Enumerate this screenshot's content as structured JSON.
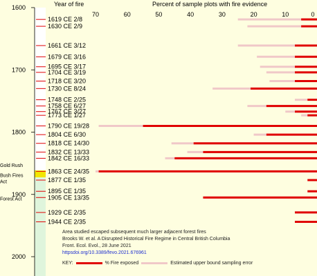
{
  "chart_data": {
    "type": "bar",
    "orientation": "horizontal",
    "title": "Percent of sample plots with fire evidence",
    "ylabel": "Year of fire",
    "xlim": [
      70,
      0
    ],
    "x_ticks": [
      "70",
      "60",
      "50",
      "40",
      "30",
      "20",
      "10",
      "0"
    ],
    "y_axis_ticks": [
      "1600",
      "1700",
      "1800",
      "1900",
      "2000"
    ],
    "ylim": [
      1600,
      2000
    ],
    "y_reversed": true,
    "grid": false,
    "legend": "bottom",
    "fire_years": [
      {
        "label": "1619 CE  2/8",
        "year": 1619,
        "exposed": 5,
        "upper": 25
      },
      {
        "label": "1630 CE  2/9",
        "year": 1630,
        "exposed": 5,
        "upper": 22
      },
      {
        "label": "1661 CE  3/12",
        "year": 1661,
        "exposed": 7,
        "upper": 25
      },
      {
        "label": "1679 CE  3/16",
        "year": 1679,
        "exposed": 7,
        "upper": 19
      },
      {
        "label": "1695 CE  3/17",
        "year": 1695,
        "exposed": 7,
        "upper": 18
      },
      {
        "label": "1704 CE  3/19",
        "year": 1704,
        "exposed": 7,
        "upper": 16
      },
      {
        "label": "1718 CE  3/20",
        "year": 1718,
        "exposed": 7,
        "upper": 15
      },
      {
        "label": "1730 CE  8/24",
        "year": 1730,
        "exposed": 21,
        "upper": 33
      },
      {
        "label": "1748 CE  2/25",
        "year": 1748,
        "exposed": 3,
        "upper": 7
      },
      {
        "label": "1758 CE  6/27",
        "year": 1758,
        "exposed": 16,
        "upper": 22
      },
      {
        "label": "1767 CE  3/27",
        "year": 1767,
        "exposed": 7,
        "upper": 10
      },
      {
        "label": "1773 CE  1/27",
        "year": 1773,
        "exposed": 3,
        "upper": 5
      },
      {
        "label": "1790 CE 19/28",
        "year": 1790,
        "exposed": 55,
        "upper": 69
      },
      {
        "label": "1804 CE  6/30",
        "year": 1804,
        "exposed": 16,
        "upper": 20
      },
      {
        "label": "1818 CE 14/30",
        "year": 1818,
        "exposed": 39,
        "upper": 46
      },
      {
        "label": "1832 CE 13/33",
        "year": 1832,
        "exposed": 36,
        "upper": 41
      },
      {
        "label": "1842 CE 16/33",
        "year": 1842,
        "exposed": 45,
        "upper": 48
      },
      {
        "label": "1863 CE 24/35",
        "year": 1863,
        "exposed": 69,
        "upper": 70
      },
      {
        "label": "1877 CE  1/35",
        "year": 1877,
        "exposed": 3,
        "upper": 3
      },
      {
        "label": "1895 CE  1/35",
        "year": 1895,
        "exposed": 3,
        "upper": 3
      },
      {
        "label": "1905 CE 13/35",
        "year": 1905,
        "exposed": 36,
        "upper": 36
      },
      {
        "label": "1929 CE  2/35",
        "year": 1929,
        "exposed": 7,
        "upper": 7
      },
      {
        "label": "1944 CE  2/35",
        "year": 1944,
        "exposed": 7,
        "upper": 7
      }
    ],
    "annotations": [
      {
        "label": "Gold Rush",
        "year": 1858
      },
      {
        "label": "Bush Fires Act",
        "year": 1874
      },
      {
        "label": "Forest Act",
        "year": 1912
      }
    ],
    "series": [
      {
        "name": "% Fire exposed",
        "color": "#e00000"
      },
      {
        "name": "Estimated upper bound sampling error",
        "color": "#f0c8c8"
      }
    ],
    "axis_strip": {
      "before_1858": "#ffffff",
      "gold_rush": "#f2e600",
      "after": "#dff5dc"
    }
  },
  "notes": {
    "line1": "Area studied escaped subsequent much larger adjacent forest fires",
    "line2": "Brooks W. et al. A Disrupted Historical Fire Regime in Central British Columbia",
    "line3": "Front. Ecol. Evol., 28 June 2021",
    "doi": "httpsdoi.org/10.3389/fevo.2021.676961"
  },
  "key": {
    "label": "KEY:",
    "exposed_label": "% Fire exposed",
    "error_label": "Estimated upper bound sampling error"
  }
}
